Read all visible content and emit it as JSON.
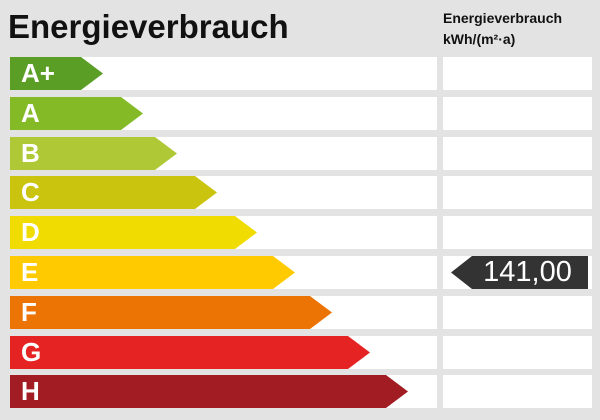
{
  "title": "Energieverbrauch",
  "unit_header": {
    "line1": "Energieverbrauch",
    "line2": "kWh/(m²·a)"
  },
  "value_badge": {
    "value": "141,00",
    "row": "E",
    "background": "#333333",
    "text_color": "#FFFFFF"
  },
  "scale": {
    "rows": [
      {
        "label": "A+",
        "color": "#5A9E26",
        "arrow_width": 93
      },
      {
        "label": "A",
        "color": "#84BA26",
        "arrow_width": 133
      },
      {
        "label": "B",
        "color": "#AFC836",
        "arrow_width": 167
      },
      {
        "label": "C",
        "color": "#CBC40F",
        "arrow_width": 207
      },
      {
        "label": "D",
        "color": "#F0DC00",
        "arrow_width": 247
      },
      {
        "label": "E",
        "color": "#FFCB00",
        "arrow_width": 285
      },
      {
        "label": "F",
        "color": "#EC7404",
        "arrow_width": 322
      },
      {
        "label": "G",
        "color": "#E52322",
        "arrow_width": 360
      },
      {
        "label": "H",
        "color": "#A21D23",
        "arrow_width": 398
      }
    ]
  },
  "colors": {
    "page_background": "#E3E3E3",
    "row_background": "#FFFFFF",
    "title_text": "#111111"
  },
  "chart_data": {
    "type": "bar",
    "title": "Energieverbrauch",
    "ylabel": "Energieverbrauch kWh/(m²·a)",
    "categories": [
      "A+",
      "A",
      "B",
      "C",
      "D",
      "E",
      "F",
      "G",
      "H"
    ],
    "series": [
      {
        "name": "scale-arrow-length-px",
        "values": [
          93,
          133,
          167,
          207,
          247,
          285,
          322,
          360,
          398
        ]
      }
    ],
    "indicator": {
      "category": "E",
      "value": "141,00",
      "unit": "kWh/(m²·a)"
    },
    "legend": "none",
    "grid": "off"
  }
}
